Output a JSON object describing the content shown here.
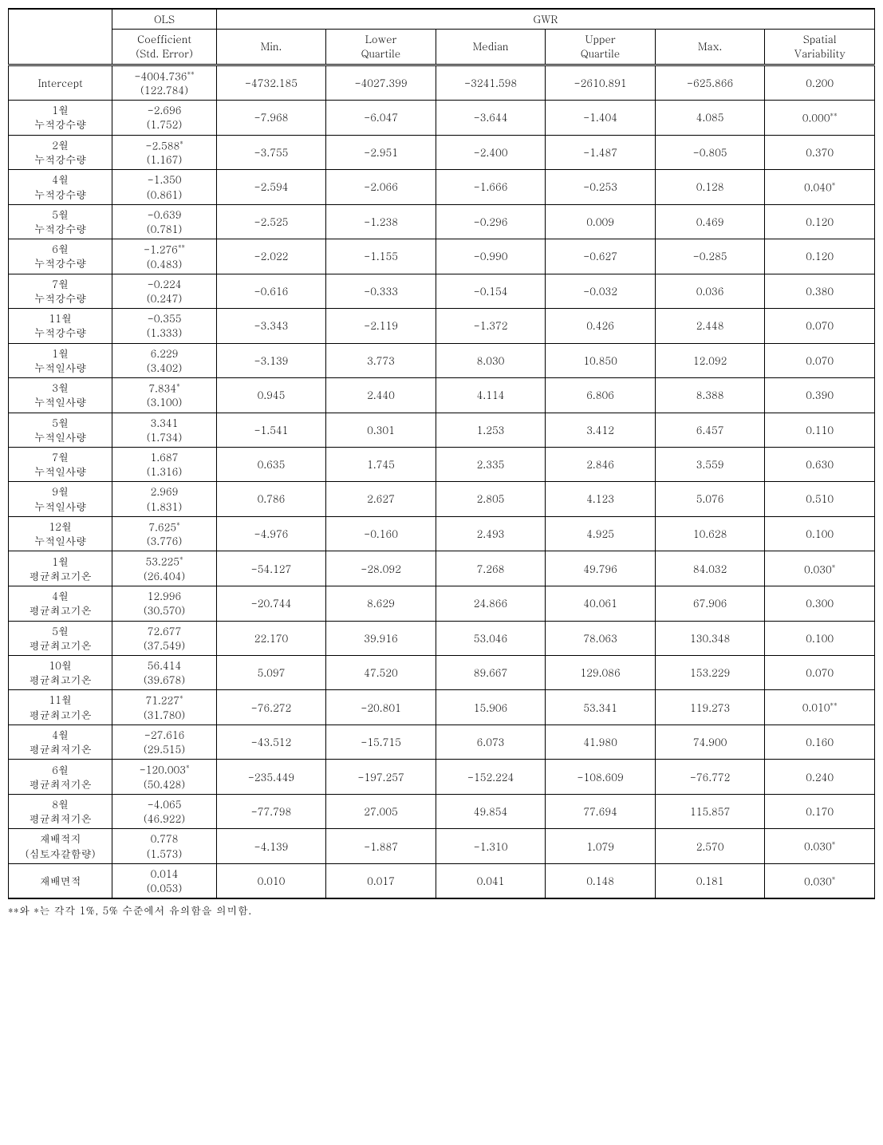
{
  "headers": {
    "ols": "OLS",
    "gwr": "GWR",
    "coef1": "Coefficient",
    "coef2": "(Std. Error)",
    "min": "Min.",
    "lq1": "Lower",
    "lq2": "Quartile",
    "median": "Median",
    "uq1": "Upper",
    "uq2": "Quartile",
    "max": "Max.",
    "sv1": "Spatial",
    "sv2": "Variability"
  },
  "rows": [
    {
      "l1": "Intercept",
      "l2": "",
      "c1": "-4004.736",
      "cs": "**",
      "c2": "(122.784)",
      "min": "-4732.185",
      "lq": "-4027.399",
      "med": "-3241.598",
      "uq": "-2610.891",
      "max": "-625.866",
      "sv": "0.200",
      "svs": ""
    },
    {
      "l1": "1월",
      "l2": "누적강수량",
      "c1": "-2.696",
      "cs": "",
      "c2": "(1.752)",
      "min": "-7.968",
      "lq": "-6.047",
      "med": "-3.644",
      "uq": "-1.404",
      "max": "4.085",
      "sv": "0.000",
      "svs": "**"
    },
    {
      "l1": "2월",
      "l2": "누적강수량",
      "c1": "-2.588",
      "cs": "*",
      "c2": "(1.167)",
      "min": "-3.755",
      "lq": "-2.951",
      "med": "-2.400",
      "uq": "-1.487",
      "max": "-0.805",
      "sv": "0.370",
      "svs": ""
    },
    {
      "l1": "4월",
      "l2": "누적강수량",
      "c1": "-1.350",
      "cs": "",
      "c2": "(0.861)",
      "min": "-2.594",
      "lq": "-2.066",
      "med": "-1.666",
      "uq": "-0.253",
      "max": "0.128",
      "sv": "0.040",
      "svs": "*"
    },
    {
      "l1": "5월",
      "l2": "누적강수량",
      "c1": "-0.639",
      "cs": "",
      "c2": "(0.781)",
      "min": "-2.525",
      "lq": "-1.238",
      "med": "-0.296",
      "uq": "0.009",
      "max": "0.469",
      "sv": "0.120",
      "svs": ""
    },
    {
      "l1": "6월",
      "l2": "누적강수량",
      "c1": "-1.276",
      "cs": "**",
      "c2": "(0.483)",
      "min": "-2.022",
      "lq": "-1.155",
      "med": "-0.990",
      "uq": "-0.627",
      "max": "-0.285",
      "sv": "0.120",
      "svs": ""
    },
    {
      "l1": "7월",
      "l2": "누적강수량",
      "c1": "-0.224",
      "cs": "",
      "c2": "(0.247)",
      "min": "-0.616",
      "lq": "-0.333",
      "med": "-0.154",
      "uq": "-0.032",
      "max": "0.036",
      "sv": "0.380",
      "svs": ""
    },
    {
      "l1": "11월",
      "l2": "누적강수량",
      "c1": "-0.355",
      "cs": "",
      "c2": "(1.333)",
      "min": "-3.343",
      "lq": "-2.119",
      "med": "-1.372",
      "uq": "0.426",
      "max": "2.448",
      "sv": "0.070",
      "svs": ""
    },
    {
      "l1": "1월",
      "l2": "누적일사량",
      "c1": "6.229",
      "cs": "",
      "c2": "(3.402)",
      "min": "-3.139",
      "lq": "3.773",
      "med": "8.030",
      "uq": "10.850",
      "max": "12.092",
      "sv": "0.070",
      "svs": ""
    },
    {
      "l1": "3월",
      "l2": "누적일사량",
      "c1": "7.834",
      "cs": "*",
      "c2": "(3.100)",
      "min": "0.945",
      "lq": "2.440",
      "med": "4.114",
      "uq": "6.806",
      "max": "8.388",
      "sv": "0.390",
      "svs": ""
    },
    {
      "l1": "5월",
      "l2": "누적일사량",
      "c1": "3.341",
      "cs": "",
      "c2": "(1.734)",
      "min": "-1.541",
      "lq": "0.301",
      "med": "1.253",
      "uq": "3.412",
      "max": "6.457",
      "sv": "0.110",
      "svs": ""
    },
    {
      "l1": "7월",
      "l2": "누적일사량",
      "c1": "1.687",
      "cs": "",
      "c2": "(1.316)",
      "min": "0.635",
      "lq": "1.745",
      "med": "2.335",
      "uq": "2.846",
      "max": "3.559",
      "sv": "0.630",
      "svs": ""
    },
    {
      "l1": "9월",
      "l2": "누적일사량",
      "c1": "2.969",
      "cs": "",
      "c2": "(1.831)",
      "min": "0.786",
      "lq": "2.627",
      "med": "2.805",
      "uq": "4.123",
      "max": "5.076",
      "sv": "0.510",
      "svs": ""
    },
    {
      "l1": "12월",
      "l2": "누적일사량",
      "c1": "7.625",
      "cs": "*",
      "c2": "(3.776)",
      "min": "-4.976",
      "lq": "-0.160",
      "med": "2.493",
      "uq": "4.925",
      "max": "10.628",
      "sv": "0.100",
      "svs": ""
    },
    {
      "l1": "1월",
      "l2": "평균최고기온",
      "c1": "53.225",
      "cs": "*",
      "c2": "(26.404)",
      "min": "-54.127",
      "lq": "-28.092",
      "med": "7.268",
      "uq": "49.796",
      "max": "84.032",
      "sv": "0.030",
      "svs": "*"
    },
    {
      "l1": "4월",
      "l2": "평균최고기온",
      "c1": "12.996",
      "cs": "",
      "c2": "(30.570)",
      "min": "-20.744",
      "lq": "8.629",
      "med": "24.866",
      "uq": "40.061",
      "max": "67.906",
      "sv": "0.300",
      "svs": ""
    },
    {
      "l1": "5월",
      "l2": "평균최고기온",
      "c1": "72.677",
      "cs": "",
      "c2": "(37.549)",
      "min": "22.170",
      "lq": "39.916",
      "med": "53.046",
      "uq": "78.063",
      "max": "130.348",
      "sv": "0.100",
      "svs": ""
    },
    {
      "l1": "10월",
      "l2": "평균최고기온",
      "c1": "56.414",
      "cs": "",
      "c2": "(39.678)",
      "min": "5.097",
      "lq": "47.520",
      "med": "89.667",
      "uq": "129.086",
      "max": "153.229",
      "sv": "0.070",
      "svs": ""
    },
    {
      "l1": "11월",
      "l2": "평균최고기온",
      "c1": "71.227",
      "cs": "*",
      "c2": "(31.780)",
      "min": "-76.272",
      "lq": "-20.801",
      "med": "15.906",
      "uq": "53.341",
      "max": "119.273",
      "sv": "0.010",
      "svs": "**"
    },
    {
      "l1": "4월",
      "l2": "평균최저기온",
      "c1": "-27.616",
      "cs": "",
      "c2": "(29.515)",
      "min": "-43.512",
      "lq": "-15.715",
      "med": "6.073",
      "uq": "41.980",
      "max": "74.900",
      "sv": "0.160",
      "svs": ""
    },
    {
      "l1": "6월",
      "l2": "평균최저기온",
      "c1": "-120.003",
      "cs": "*",
      "c2": "(50.428)",
      "min": "-235.449",
      "lq": "-197.257",
      "med": "-152.224",
      "uq": "-108.609",
      "max": "-76.772",
      "sv": "0.240",
      "svs": ""
    },
    {
      "l1": "8월",
      "l2": "평균최저기온",
      "c1": "-4.065",
      "cs": "",
      "c2": "(46.922)",
      "min": "-77.798",
      "lq": "27.005",
      "med": "49.854",
      "uq": "77.694",
      "max": "115.857",
      "sv": "0.170",
      "svs": ""
    },
    {
      "l1": "재배적지",
      "l2": "(심토자갈함량)",
      "c1": "0.778",
      "cs": "",
      "c2": "(1.573)",
      "min": "-4.139",
      "lq": "-1.887",
      "med": "-1.310",
      "uq": "1.079",
      "max": "2.570",
      "sv": "0.030",
      "svs": "*"
    },
    {
      "l1": "재배면적",
      "l2": "",
      "c1": "0.014",
      "cs": "",
      "c2": "(0.053)",
      "min": "0.010",
      "lq": "0.017",
      "med": "0.041",
      "uq": "0.148",
      "max": "0.181",
      "sv": "0.030",
      "svs": "*"
    }
  ],
  "footnote": "**와 *는 각각 1%, 5% 수준에서 유의함을 의미함."
}
